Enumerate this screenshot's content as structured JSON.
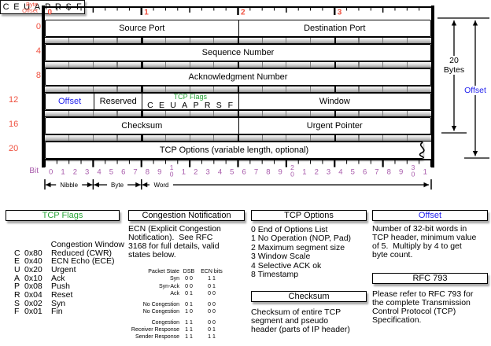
{
  "colors": {
    "red": "#ef5140",
    "purple": "#a85aab",
    "green": "#27a437",
    "blue": "#2222ee"
  },
  "diagram": {
    "byte_offset_label": [
      "Byte",
      "Offset"
    ],
    "bit_label": "Bit",
    "ruler_numbers": [
      "0",
      "1",
      "2",
      "3"
    ],
    "ruler_number_bits": [
      0,
      8,
      16,
      24
    ],
    "bit_count": 32,
    "rows": [
      {
        "offset": "0",
        "cells": [
          {
            "label": "Source Port",
            "bits": 16
          },
          {
            "label": "Destination Port",
            "bits": 16
          }
        ]
      },
      {
        "offset": "4",
        "cells": [
          {
            "label": "Sequence Number",
            "bits": 32
          }
        ]
      },
      {
        "offset": "8",
        "cells": [
          {
            "label": "Acknowledgment Number",
            "bits": 32
          }
        ]
      },
      {
        "offset": "12",
        "cells": [
          {
            "label": "Offset",
            "bits": 4,
            "color": "blue"
          },
          {
            "label": "Reserved",
            "bits": 4
          },
          {
            "label": "TCP Flags",
            "bits": 8,
            "type": "flags",
            "letters": [
              "C",
              "E",
              "U",
              "A",
              "P",
              "R",
              "S",
              "F"
            ]
          },
          {
            "label": "Window",
            "bits": 16
          }
        ]
      },
      {
        "offset": "16",
        "cells": [
          {
            "label": "Checksum",
            "bits": 16
          },
          {
            "label": "Urgent Pointer",
            "bits": 16
          }
        ]
      },
      {
        "offset": "20",
        "cells": [
          {
            "label": "TCP Options (variable length, optional)",
            "bits": 32
          }
        ],
        "torn": true
      }
    ],
    "scale_labels": [
      "Nibble",
      "Byte",
      "Word"
    ],
    "side_arrows": {
      "bytes_label_1": "20",
      "bytes_label_2": "Bytes",
      "offset_label": "Offset"
    }
  },
  "legend": {
    "tcp_flags": {
      "title": "TCP Flags",
      "letters": [
        "C",
        "E",
        "U",
        "A",
        "P",
        "R",
        "S",
        "F"
      ],
      "entries": [
        {
          "letter": "",
          "code": "",
          "desc": "Congestion Window"
        },
        {
          "letter": "C",
          "code": "0x80",
          "desc": "Reduced (CWR)"
        },
        {
          "letter": "E",
          "code": "0x40",
          "desc": "ECN Echo (ECE)"
        },
        {
          "letter": "U",
          "code": "0x20",
          "desc": "Urgent"
        },
        {
          "letter": "A",
          "code": "0x10",
          "desc": "Ack"
        },
        {
          "letter": "P",
          "code": "0x08",
          "desc": "Push"
        },
        {
          "letter": "R",
          "code": "0x04",
          "desc": "Reset"
        },
        {
          "letter": "S",
          "code": "0x02",
          "desc": "Syn"
        },
        {
          "letter": "F",
          "code": "0x01",
          "desc": "Fin"
        }
      ]
    },
    "congestion": {
      "title": "Congestion Notification",
      "paragraph": [
        "ECN (Explicit Congestion",
        "Notification).  See RFC",
        "3168 for full details, valid",
        "states below."
      ],
      "table": {
        "headers": [
          "Packet State",
          "DSB",
          "ECN bits"
        ],
        "groups": [
          [
            [
              "Syn",
              "0 0",
              "1 1"
            ],
            [
              "Syn-Ack",
              "0 0",
              "0 1"
            ],
            [
              "Ack",
              "0 1",
              "0 0"
            ]
          ],
          [
            [
              "No Congestion",
              "0 1",
              "0 0"
            ],
            [
              "No Congestion",
              "1 0",
              "0 0"
            ]
          ],
          [
            [
              "Congestion",
              "1 1",
              "0 0"
            ],
            [
              "Receiver Response",
              "1 1",
              "0 1"
            ],
            [
              "Sender Response",
              "1 1",
              "1 1"
            ]
          ]
        ]
      }
    },
    "tcp_options": {
      "title": "TCP Options",
      "items": [
        "0 End of Options List",
        "1 No Operation (NOP, Pad)",
        "2 Maximum segment size",
        "3 Window Scale",
        "4 Selective ACK ok",
        "8 Timestamp"
      ]
    },
    "checksum": {
      "title": "Checksum",
      "paragraph": [
        "Checksum of entire TCP",
        "segment and pseudo",
        "header (parts of IP header)"
      ]
    },
    "offset": {
      "title": "Offset",
      "paragraph": [
        "Number of 32-bit words in",
        "TCP header, minimum value",
        "of 5.  Multiply by 4 to get",
        "byte count."
      ]
    },
    "rfc": {
      "title": "RFC 793",
      "paragraph": [
        "Please refer to RFC 793 for",
        "the complete Transmission",
        "Control Protocol (TCP)",
        "Specification."
      ]
    }
  }
}
